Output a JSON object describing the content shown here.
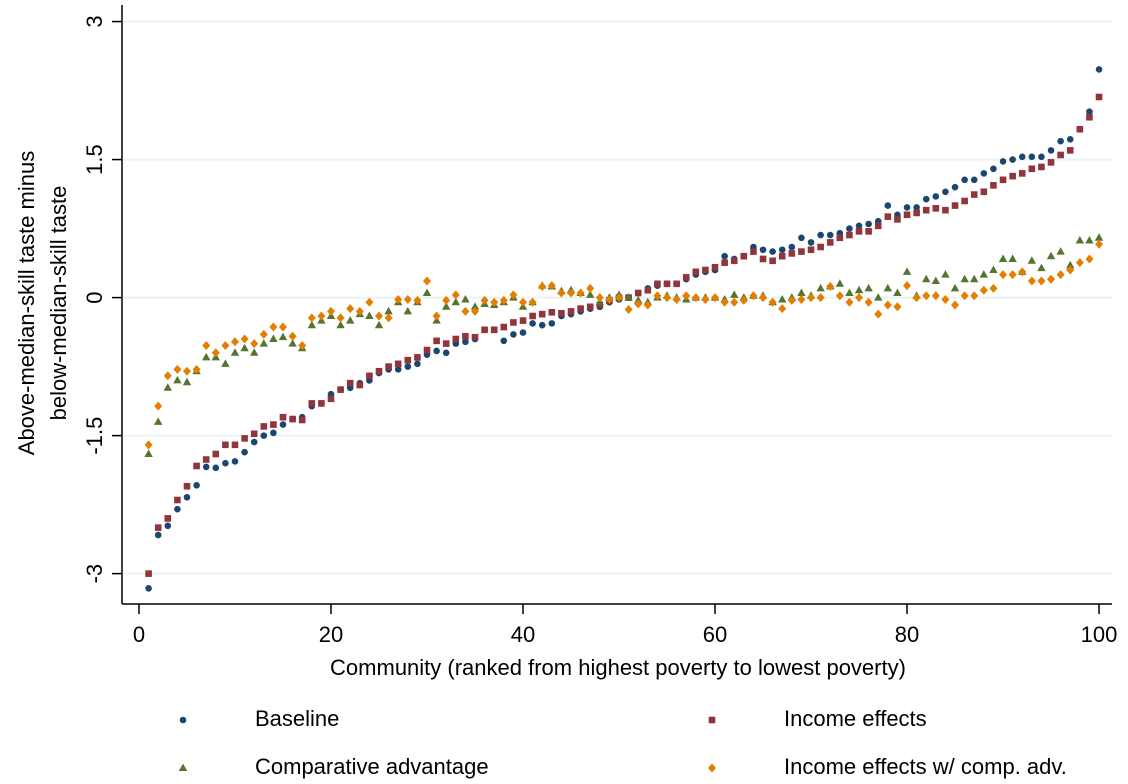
{
  "chart_data": {
    "type": "scatter",
    "xlabel": "Community (ranked from highest poverty to lowest poverty)",
    "ylabel": [
      "Above-median-skill taste minus",
      "below-median-skill taste"
    ],
    "xlim": [
      -1.77,
      101.35
    ],
    "ylim": [
      -3.33,
      3.18
    ],
    "xticks": [
      0,
      20,
      40,
      60,
      80,
      100
    ],
    "yticks": [
      -3,
      -1.5,
      0,
      1.5,
      3
    ],
    "grid": true,
    "legend": "bottom",
    "x": [
      1,
      2,
      3,
      4,
      5,
      6,
      7,
      8,
      9,
      10,
      11,
      12,
      13,
      14,
      15,
      16,
      17,
      18,
      19,
      20,
      21,
      22,
      23,
      24,
      25,
      26,
      27,
      28,
      29,
      30,
      31,
      32,
      33,
      34,
      35,
      36,
      37,
      38,
      39,
      40,
      41,
      42,
      43,
      44,
      45,
      46,
      47,
      48,
      49,
      50,
      51,
      52,
      53,
      54,
      55,
      56,
      57,
      58,
      59,
      60,
      61,
      62,
      63,
      64,
      65,
      66,
      67,
      68,
      69,
      70,
      71,
      72,
      73,
      74,
      75,
      76,
      77,
      78,
      79,
      80,
      81,
      82,
      83,
      84,
      85,
      86,
      87,
      88,
      89,
      90,
      91,
      92,
      93,
      94,
      95,
      96,
      97,
      98,
      99,
      100
    ],
    "series": [
      {
        "name": "Baseline",
        "color": "#1a476f",
        "marker": "circle",
        "values": [
          -3.16,
          -2.58,
          -2.48,
          -2.3,
          -2.17,
          -2.04,
          -1.84,
          -1.85,
          -1.8,
          -1.78,
          -1.68,
          -1.57,
          -1.5,
          -1.47,
          -1.38,
          -1.32,
          -1.3,
          -1.18,
          -1.15,
          -1.05,
          -1.0,
          -0.98,
          -0.93,
          -0.9,
          -0.82,
          -0.78,
          -0.78,
          -0.75,
          -0.72,
          -0.62,
          -0.58,
          -0.6,
          -0.5,
          -0.48,
          -0.45,
          -0.35,
          -0.35,
          -0.47,
          -0.4,
          -0.38,
          -0.28,
          -0.3,
          -0.28,
          -0.2,
          -0.18,
          -0.15,
          -0.12,
          -0.1,
          -0.05,
          -0.02,
          0.0,
          0.05,
          0.1,
          0.13,
          0.15,
          0.15,
          0.2,
          0.25,
          0.28,
          0.3,
          0.45,
          0.42,
          0.45,
          0.55,
          0.52,
          0.5,
          0.52,
          0.55,
          0.65,
          0.6,
          0.68,
          0.68,
          0.7,
          0.75,
          0.78,
          0.8,
          0.83,
          1.0,
          0.9,
          0.98,
          0.98,
          1.07,
          1.1,
          1.15,
          1.2,
          1.28,
          1.28,
          1.35,
          1.4,
          1.48,
          1.5,
          1.53,
          1.53,
          1.53,
          1.6,
          1.7,
          1.72,
          1.83,
          2.02,
          2.48
        ]
      },
      {
        "name": "Income effects",
        "color": "#90353b",
        "marker": "square",
        "values": [
          -3.0,
          -2.5,
          -2.4,
          -2.2,
          -2.05,
          -1.83,
          -1.76,
          -1.7,
          -1.6,
          -1.6,
          -1.53,
          -1.48,
          -1.4,
          -1.38,
          -1.3,
          -1.32,
          -1.33,
          -1.15,
          -1.15,
          -1.1,
          -1.0,
          -0.93,
          -0.95,
          -0.85,
          -0.8,
          -0.75,
          -0.72,
          -0.68,
          -0.65,
          -0.57,
          -0.47,
          -0.5,
          -0.45,
          -0.42,
          -0.43,
          -0.35,
          -0.35,
          -0.32,
          -0.27,
          -0.25,
          -0.2,
          -0.18,
          -0.16,
          -0.17,
          -0.15,
          -0.12,
          -0.1,
          -0.08,
          -0.03,
          0.0,
          0.0,
          0.05,
          0.08,
          0.15,
          0.15,
          0.15,
          0.22,
          0.28,
          0.3,
          0.33,
          0.38,
          0.4,
          0.45,
          0.5,
          0.42,
          0.4,
          0.45,
          0.48,
          0.5,
          0.52,
          0.55,
          0.6,
          0.65,
          0.68,
          0.72,
          0.72,
          0.78,
          0.88,
          0.85,
          0.9,
          0.92,
          0.95,
          0.97,
          0.95,
          1.0,
          1.05,
          1.12,
          1.15,
          1.22,
          1.28,
          1.32,
          1.35,
          1.4,
          1.42,
          1.47,
          1.55,
          1.6,
          1.83,
          1.96,
          2.18
        ]
      },
      {
        "name": "Comparative advantage",
        "color": "#55752f",
        "marker": "triangle",
        "values": [
          -1.7,
          -1.35,
          -0.98,
          -0.9,
          -0.92,
          -0.8,
          -0.65,
          -0.65,
          -0.72,
          -0.6,
          -0.55,
          -0.6,
          -0.5,
          -0.45,
          -0.43,
          -0.5,
          -0.55,
          -0.3,
          -0.25,
          -0.2,
          -0.3,
          -0.25,
          -0.18,
          -0.2,
          -0.3,
          -0.15,
          -0.05,
          -0.15,
          -0.05,
          0.05,
          -0.25,
          -0.1,
          -0.05,
          -0.02,
          -0.1,
          -0.07,
          -0.08,
          -0.05,
          0.0,
          -0.1,
          -0.05,
          0.13,
          0.12,
          0.07,
          0.08,
          0.05,
          0.03,
          -0.05,
          0.0,
          0.03,
          0.0,
          -0.03,
          -0.05,
          0.0,
          0.02,
          0.0,
          -0.02,
          0.0,
          0.0,
          0.0,
          -0.02,
          0.03,
          0.0,
          0.02,
          0.02,
          -0.05,
          -0.02,
          0.0,
          0.05,
          0.02,
          0.1,
          0.12,
          0.15,
          0.05,
          0.08,
          0.1,
          0.0,
          0.1,
          0.05,
          0.28,
          0.02,
          0.2,
          0.18,
          0.25,
          0.1,
          0.2,
          0.2,
          0.25,
          0.3,
          0.42,
          0.42,
          0.28,
          0.4,
          0.32,
          0.45,
          0.5,
          0.35,
          0.62,
          0.62,
          0.65
        ]
      },
      {
        "name": "Income effects w/ comp. adv.",
        "color": "#e37e00",
        "marker": "diamond",
        "values": [
          -1.6,
          -1.18,
          -0.85,
          -0.78,
          -0.8,
          -0.78,
          -0.52,
          -0.6,
          -0.52,
          -0.48,
          -0.45,
          -0.5,
          -0.4,
          -0.32,
          -0.32,
          -0.42,
          -0.52,
          -0.22,
          -0.2,
          -0.15,
          -0.22,
          -0.12,
          -0.15,
          -0.05,
          -0.2,
          -0.22,
          -0.02,
          -0.02,
          -0.03,
          0.18,
          -0.2,
          -0.03,
          0.03,
          -0.15,
          -0.15,
          -0.03,
          -0.05,
          -0.03,
          0.03,
          -0.05,
          -0.05,
          0.12,
          0.13,
          0.05,
          0.05,
          0.05,
          0.1,
          0.0,
          -0.02,
          0.0,
          -0.13,
          -0.07,
          -0.08,
          0.02,
          0.0,
          -0.02,
          0.02,
          0.0,
          -0.02,
          0.0,
          -0.05,
          -0.05,
          -0.03,
          0.02,
          0.0,
          -0.05,
          -0.12,
          -0.03,
          -0.02,
          0.0,
          0.0,
          0.12,
          0.02,
          -0.05,
          0.0,
          -0.05,
          -0.18,
          -0.08,
          -0.1,
          0.13,
          0.0,
          0.02,
          0.02,
          -0.02,
          -0.08,
          0.02,
          0.02,
          0.08,
          0.1,
          0.25,
          0.25,
          0.28,
          0.18,
          0.18,
          0.2,
          0.25,
          0.3,
          0.38,
          0.42,
          0.58
        ]
      }
    ]
  }
}
